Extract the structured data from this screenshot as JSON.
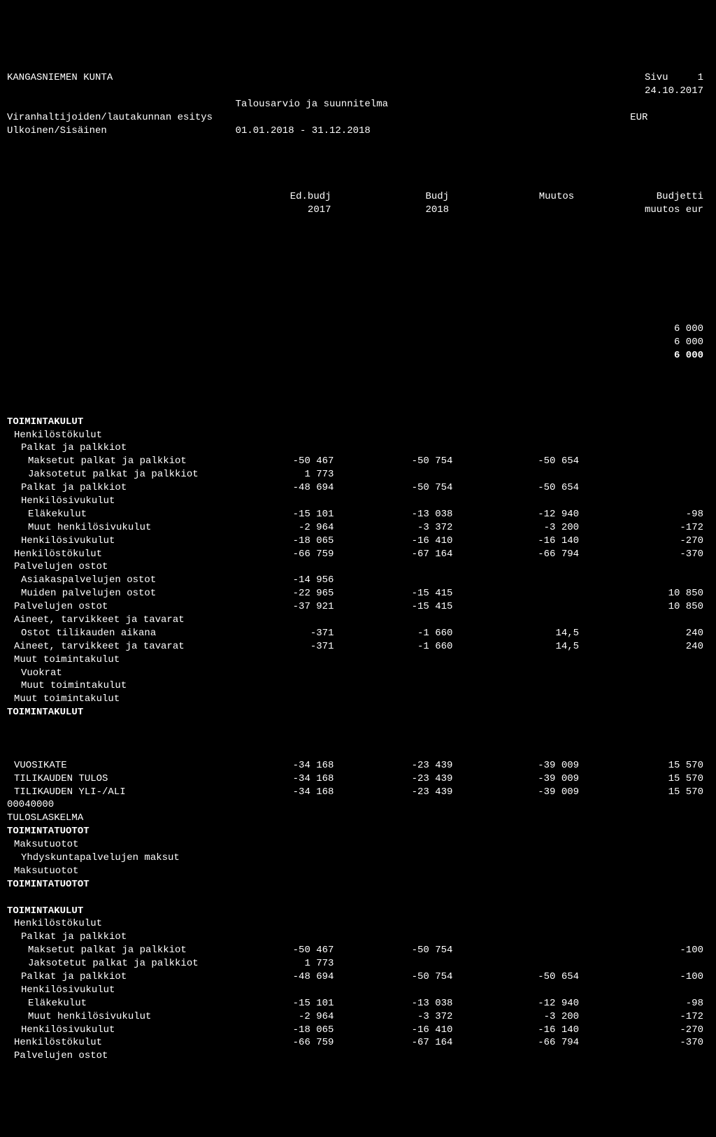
{
  "header": {
    "org": "KANGASNIEMEN KUNTA",
    "pageLabel": "Sivu",
    "pageNum": "1",
    "date": "24.10.2017",
    "title": "Talousarvio ja suunnitelma",
    "sub1": "Viranhaltijoiden/lautakunnan esitys",
    "currency": "EUR",
    "sub2": "Ulkoinen/Sisäinen",
    "period": "01.01.2018 - 31.12.2018"
  },
  "columns": {
    "c1a": "Ed.budj",
    "c1b": "2017",
    "c2a": "Budj",
    "c2b": "2018",
    "c3a": "Muutos",
    "c4a": "Budjetti",
    "c4b": "muutos eur"
  },
  "preTotals": {
    "a": "6 000",
    "b": "6 000",
    "c": "6 000"
  },
  "rows": [
    {
      "label": "TOIMINTAKULUT",
      "bold": true
    },
    {
      "label": "Henkilöstökulut",
      "indent": 1
    },
    {
      "label": "Palkat ja palkkiot",
      "indent": 2
    },
    {
      "label": "Maksetut palkat ja palkkiot",
      "indent": 3,
      "ed": "-50 467",
      "budj": "-50 754",
      "muutos": "-50 654"
    },
    {
      "label": "Jaksotetut palkat ja palkkiot",
      "indent": 3,
      "ed": "1 773"
    },
    {
      "label": "Palkat ja palkkiot",
      "indent": 2,
      "ed": "-48 694",
      "budj": "-50 754",
      "muutos": "-50 654"
    },
    {
      "label": "Henkilösivukulut",
      "indent": 2
    },
    {
      "label": "Eläkekulut",
      "indent": 3,
      "ed": "-15 101",
      "budj": "-13 038",
      "muutos": "-12 940",
      "eur": "-98"
    },
    {
      "label": "Muut henkilösivukulut",
      "indent": 3,
      "ed": "-2 964",
      "budj": "-3 372",
      "muutos": "-3 200",
      "eur": "-172"
    },
    {
      "label": "Henkilösivukulut",
      "indent": 2,
      "ed": "-18 065",
      "budj": "-16 410",
      "muutos": "-16 140",
      "eur": "-270"
    },
    {
      "label": "Henkilöstökulut",
      "indent": 1,
      "ed": "-66 759",
      "budj": "-67 164",
      "muutos": "-66 794",
      "eur": "-370"
    },
    {
      "label": "Palvelujen ostot",
      "indent": 1
    },
    {
      "label": "Asiakaspalvelujen ostot",
      "indent": 2,
      "ed": "-14 956"
    },
    {
      "label": "Muiden palvelujen ostot",
      "indent": 2,
      "ed": "-22 965",
      "budj": "-15 415",
      "eur": "10 850"
    },
    {
      "label": "Palvelujen ostot",
      "indent": 1,
      "ed": "-37 921",
      "budj": "-15 415",
      "eur": "10 850"
    },
    {
      "label": "Aineet, tarvikkeet ja tavarat",
      "indent": 1
    },
    {
      "label": "Ostot tilikauden aikana",
      "indent": 2,
      "ed": "-371",
      "budj": "-1 660",
      "muutos": "14,5",
      "eur": "240"
    },
    {
      "label": "Aineet, tarvikkeet ja tavarat",
      "indent": 1,
      "ed": "-371",
      "budj": "-1 660",
      "muutos": "14,5",
      "eur": "240"
    },
    {
      "label": "Muut toimintakulut",
      "indent": 1
    },
    {
      "label": "Vuokrat",
      "indent": 2
    },
    {
      "label": "Muut toimintakulut",
      "indent": 2
    },
    {
      "label": "Muut toimintakulut",
      "indent": 1
    },
    {
      "label": "TOIMINTAKULUT",
      "bold": true
    },
    {
      "blank": true
    },
    {
      "blank": true
    },
    {
      "blank": true
    },
    {
      "label": "VUOSIKATE",
      "indent": 1,
      "ed": "-34 168",
      "budj": "-23 439",
      "muutos": "-39 009",
      "eur": "15 570"
    },
    {
      "label": "TILIKAUDEN TULOS",
      "indent": 1,
      "ed": "-34 168",
      "budj": "-23 439",
      "muutos": "-39 009",
      "eur": "15 570"
    },
    {
      "label": "TILIKAUDEN YLI-/ALI",
      "indent": 1,
      "ed": "-34 168",
      "budj": "-23 439",
      "muutos": "-39 009",
      "eur": "15 570"
    },
    {
      "label": "00040000"
    },
    {
      "label": "TULOSLASKELMA"
    },
    {
      "label": "TOIMINTATUOTOT",
      "bold": true
    },
    {
      "label": "Maksutuotot",
      "indent": 1
    },
    {
      "label": "Yhdyskuntapalvelujen maksut",
      "indent": 2
    },
    {
      "label": "Maksutuotot",
      "indent": 1
    },
    {
      "label": "TOIMINTATUOTOT",
      "bold": true
    },
    {
      "blank": true
    },
    {
      "label": "TOIMINTAKULUT",
      "bold": true
    },
    {
      "label": "Henkilöstökulut",
      "indent": 1
    },
    {
      "label": "Palkat ja palkkiot",
      "indent": 2
    },
    {
      "label": "Maksetut palkat ja palkkiot",
      "indent": 3,
      "ed": "-50 467",
      "budj": "-50 754",
      "eur": "-100"
    },
    {
      "label": "Jaksotetut palkat ja palkkiot",
      "indent": 3,
      "ed": "1 773"
    },
    {
      "label": "Palkat ja palkkiot",
      "indent": 2,
      "ed": "-48 694",
      "budj": "-50 754",
      "muutos": "-50 654",
      "eur": "-100"
    },
    {
      "label": "Henkilösivukulut",
      "indent": 2
    },
    {
      "label": "Eläkekulut",
      "indent": 3,
      "ed": "-15 101",
      "budj": "-13 038",
      "muutos": "-12 940",
      "eur": "-98"
    },
    {
      "label": "Muut henkilösivukulut",
      "indent": 3,
      "ed": "-2 964",
      "budj": "-3 372",
      "muutos": "-3 200",
      "eur": "-172"
    },
    {
      "label": "Henkilösivukulut",
      "indent": 2,
      "ed": "-18 065",
      "budj": "-16 410",
      "muutos": "-16 140",
      "eur": "-270"
    },
    {
      "label": "Henkilöstökulut",
      "indent": 1,
      "ed": "-66 759",
      "budj": "-67 164",
      "muutos": "-66 794",
      "eur": "-370"
    },
    {
      "label": "Palvelujen ostot",
      "indent": 1
    }
  ]
}
